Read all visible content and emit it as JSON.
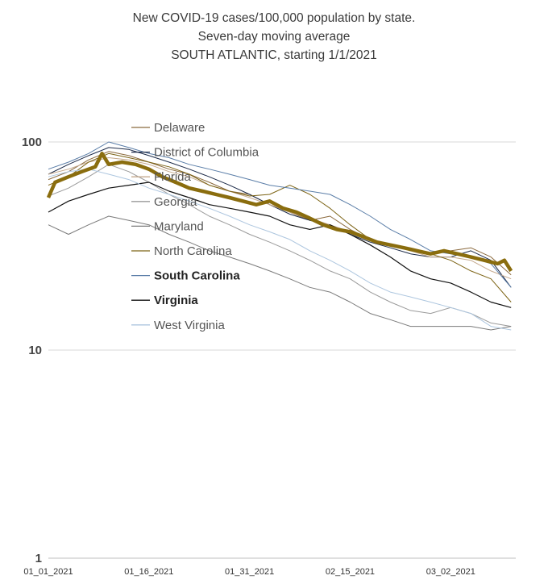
{
  "chart_data": {
    "type": "line",
    "title": [
      "New COVID-19 cases/100,000 population by state.",
      "Seven-day moving average",
      "SOUTH ATLANTIC, starting 1/1/2021"
    ],
    "y_scale": "log",
    "ylim": [
      1,
      100
    ],
    "y_ticks": [
      {
        "value": 100,
        "label": "100"
      },
      {
        "value": 10,
        "label": "10"
      },
      {
        "value": 1,
        "label": "1"
      }
    ],
    "x_ticks": [
      {
        "day": 0,
        "label": "01_01_2021"
      },
      {
        "day": 15,
        "label": "01_16_2021"
      },
      {
        "day": 30,
        "label": "01_31_2021"
      },
      {
        "day": 45,
        "label": "02_15_2021"
      },
      {
        "day": 60,
        "label": "03_02_2021"
      }
    ],
    "x_range": [
      0,
      69
    ],
    "grid": "horizontal",
    "legend_position": "top-center",
    "series": [
      {
        "name": "Delaware",
        "color": "#8b6a3e",
        "width": 1,
        "bold": false,
        "points": [
          [
            0,
            66
          ],
          [
            3,
            72
          ],
          [
            6,
            82
          ],
          [
            9,
            90
          ],
          [
            12,
            86
          ],
          [
            15,
            80
          ],
          [
            18,
            74
          ],
          [
            21,
            70
          ],
          [
            24,
            64
          ],
          [
            27,
            58
          ],
          [
            30,
            56
          ],
          [
            33,
            50
          ],
          [
            36,
            46
          ],
          [
            39,
            42
          ],
          [
            42,
            44
          ],
          [
            45,
            38
          ],
          [
            48,
            34
          ],
          [
            51,
            32
          ],
          [
            54,
            30
          ],
          [
            57,
            29
          ],
          [
            60,
            30
          ],
          [
            63,
            31
          ],
          [
            66,
            28
          ],
          [
            69,
            23
          ]
        ]
      },
      {
        "name": "District of Columbia",
        "color": "#1c2a48",
        "width": 1,
        "bold": false,
        "points": [
          [
            0,
            70
          ],
          [
            3,
            78
          ],
          [
            6,
            86
          ],
          [
            9,
            94
          ],
          [
            12,
            92
          ],
          [
            15,
            86
          ],
          [
            18,
            80
          ],
          [
            21,
            74
          ],
          [
            24,
            68
          ],
          [
            27,
            62
          ],
          [
            30,
            56
          ],
          [
            33,
            50
          ],
          [
            36,
            45
          ],
          [
            39,
            42
          ],
          [
            42,
            40
          ],
          [
            45,
            36
          ],
          [
            48,
            33
          ],
          [
            51,
            31
          ],
          [
            54,
            29
          ],
          [
            57,
            28
          ],
          [
            60,
            28
          ],
          [
            63,
            30
          ],
          [
            66,
            27
          ],
          [
            69,
            20
          ]
        ]
      },
      {
        "name": "Florida",
        "color": "#c5a98d",
        "width": 1,
        "bold": false,
        "points": [
          [
            0,
            70
          ],
          [
            3,
            74
          ],
          [
            6,
            80
          ],
          [
            9,
            84
          ],
          [
            12,
            82
          ],
          [
            15,
            78
          ],
          [
            18,
            72
          ],
          [
            21,
            68
          ],
          [
            24,
            62
          ],
          [
            27,
            58
          ],
          [
            30,
            54
          ],
          [
            33,
            50
          ],
          [
            36,
            46
          ],
          [
            39,
            43
          ],
          [
            42,
            40
          ],
          [
            45,
            37
          ],
          [
            48,
            34
          ],
          [
            51,
            32
          ],
          [
            54,
            30
          ],
          [
            57,
            28
          ],
          [
            60,
            28
          ],
          [
            63,
            27
          ],
          [
            66,
            24
          ],
          [
            69,
            22
          ]
        ]
      },
      {
        "name": "Georgia",
        "color": "#9a9a9a",
        "width": 1,
        "bold": false,
        "points": [
          [
            0,
            55
          ],
          [
            3,
            60
          ],
          [
            6,
            68
          ],
          [
            9,
            78
          ],
          [
            12,
            72
          ],
          [
            15,
            64
          ],
          [
            18,
            56
          ],
          [
            21,
            50
          ],
          [
            24,
            44
          ],
          [
            27,
            40
          ],
          [
            30,
            36
          ],
          [
            33,
            33
          ],
          [
            36,
            30
          ],
          [
            39,
            27
          ],
          [
            42,
            24
          ],
          [
            45,
            22
          ],
          [
            48,
            19
          ],
          [
            51,
            17
          ],
          [
            54,
            15.5
          ],
          [
            57,
            15
          ],
          [
            60,
            16
          ],
          [
            63,
            15
          ],
          [
            66,
            13.5
          ],
          [
            69,
            13
          ]
        ]
      },
      {
        "name": "Maryland",
        "color": "#7a7a7a",
        "width": 1,
        "bold": false,
        "points": [
          [
            0,
            40
          ],
          [
            3,
            36
          ],
          [
            6,
            40
          ],
          [
            9,
            44
          ],
          [
            12,
            42
          ],
          [
            15,
            40
          ],
          [
            18,
            36
          ],
          [
            21,
            33
          ],
          [
            24,
            30
          ],
          [
            27,
            28
          ],
          [
            30,
            26
          ],
          [
            33,
            24
          ],
          [
            36,
            22
          ],
          [
            39,
            20
          ],
          [
            42,
            19
          ],
          [
            45,
            17
          ],
          [
            48,
            15
          ],
          [
            51,
            14
          ],
          [
            54,
            13
          ],
          [
            57,
            13
          ],
          [
            60,
            13
          ],
          [
            63,
            13
          ],
          [
            66,
            12.5
          ],
          [
            69,
            13
          ]
        ]
      },
      {
        "name": "North Carolina",
        "color": "#7c6314",
        "width": 1,
        "bold": false,
        "points": [
          [
            0,
            62
          ],
          [
            3,
            68
          ],
          [
            6,
            80
          ],
          [
            9,
            88
          ],
          [
            12,
            84
          ],
          [
            15,
            80
          ],
          [
            18,
            76
          ],
          [
            21,
            70
          ],
          [
            24,
            62
          ],
          [
            27,
            58
          ],
          [
            30,
            55
          ],
          [
            33,
            56
          ],
          [
            36,
            62
          ],
          [
            39,
            56
          ],
          [
            42,
            48
          ],
          [
            45,
            40
          ],
          [
            48,
            34
          ],
          [
            51,
            32
          ],
          [
            54,
            30
          ],
          [
            57,
            29
          ],
          [
            60,
            27
          ],
          [
            63,
            24
          ],
          [
            66,
            22
          ],
          [
            69,
            17
          ]
        ]
      },
      {
        "name": "South Carolina",
        "color": "#5b7ea8",
        "width": 1,
        "bold": true,
        "points": [
          [
            0,
            74
          ],
          [
            3,
            80
          ],
          [
            6,
            88
          ],
          [
            9,
            100
          ],
          [
            12,
            94
          ],
          [
            15,
            88
          ],
          [
            18,
            84
          ],
          [
            21,
            78
          ],
          [
            24,
            74
          ],
          [
            27,
            70
          ],
          [
            30,
            66
          ],
          [
            33,
            62
          ],
          [
            36,
            60
          ],
          [
            39,
            58
          ],
          [
            42,
            56
          ],
          [
            45,
            50
          ],
          [
            48,
            44
          ],
          [
            51,
            38
          ],
          [
            54,
            34
          ],
          [
            57,
            30
          ],
          [
            60,
            29
          ],
          [
            63,
            28
          ],
          [
            66,
            26
          ],
          [
            69,
            20
          ]
        ]
      },
      {
        "name": "Virginia",
        "color": "#111111",
        "width": 1.2,
        "bold": true,
        "points": [
          [
            0,
            46
          ],
          [
            3,
            52
          ],
          [
            6,
            56
          ],
          [
            9,
            60
          ],
          [
            12,
            62
          ],
          [
            15,
            64
          ],
          [
            18,
            58
          ],
          [
            21,
            54
          ],
          [
            24,
            50
          ],
          [
            27,
            48
          ],
          [
            30,
            46
          ],
          [
            33,
            44
          ],
          [
            36,
            40
          ],
          [
            39,
            38
          ],
          [
            42,
            40
          ],
          [
            45,
            36
          ],
          [
            48,
            32
          ],
          [
            51,
            28
          ],
          [
            54,
            24
          ],
          [
            57,
            22
          ],
          [
            60,
            21
          ],
          [
            63,
            19
          ],
          [
            66,
            17
          ],
          [
            69,
            16
          ]
        ]
      },
      {
        "name": "West Virginia",
        "color": "#adc6df",
        "width": 1,
        "bold": false,
        "points": [
          [
            0,
            68
          ],
          [
            3,
            72
          ],
          [
            6,
            74
          ],
          [
            9,
            70
          ],
          [
            12,
            66
          ],
          [
            15,
            60
          ],
          [
            18,
            56
          ],
          [
            21,
            52
          ],
          [
            24,
            48
          ],
          [
            27,
            44
          ],
          [
            30,
            40
          ],
          [
            33,
            37
          ],
          [
            36,
            34
          ],
          [
            39,
            30
          ],
          [
            42,
            27
          ],
          [
            45,
            24
          ],
          [
            48,
            21
          ],
          [
            51,
            19
          ],
          [
            54,
            18
          ],
          [
            57,
            17
          ],
          [
            60,
            16
          ],
          [
            63,
            15
          ],
          [
            66,
            13
          ],
          [
            69,
            12.5
          ]
        ]
      },
      {
        "name": "",
        "color": "#8a6d0e",
        "width": 4.5,
        "bold": false,
        "highlight": true,
        "points": [
          [
            0,
            54
          ],
          [
            1,
            64
          ],
          [
            3,
            68
          ],
          [
            5,
            72
          ],
          [
            7,
            76
          ],
          [
            8,
            88
          ],
          [
            9,
            78
          ],
          [
            11,
            80
          ],
          [
            13,
            78
          ],
          [
            15,
            74
          ],
          [
            17,
            68
          ],
          [
            19,
            64
          ],
          [
            21,
            60
          ],
          [
            23,
            58
          ],
          [
            25,
            56
          ],
          [
            27,
            54
          ],
          [
            29,
            52
          ],
          [
            31,
            50
          ],
          [
            33,
            52
          ],
          [
            35,
            48
          ],
          [
            37,
            46
          ],
          [
            39,
            43
          ],
          [
            41,
            40
          ],
          [
            43,
            38
          ],
          [
            45,
            37
          ],
          [
            47,
            35
          ],
          [
            49,
            33
          ],
          [
            51,
            32
          ],
          [
            53,
            31
          ],
          [
            55,
            30
          ],
          [
            57,
            29
          ],
          [
            59,
            30
          ],
          [
            61,
            29
          ],
          [
            63,
            28
          ],
          [
            65,
            27
          ],
          [
            67,
            26
          ],
          [
            68,
            27
          ],
          [
            69,
            24
          ]
        ]
      }
    ]
  }
}
